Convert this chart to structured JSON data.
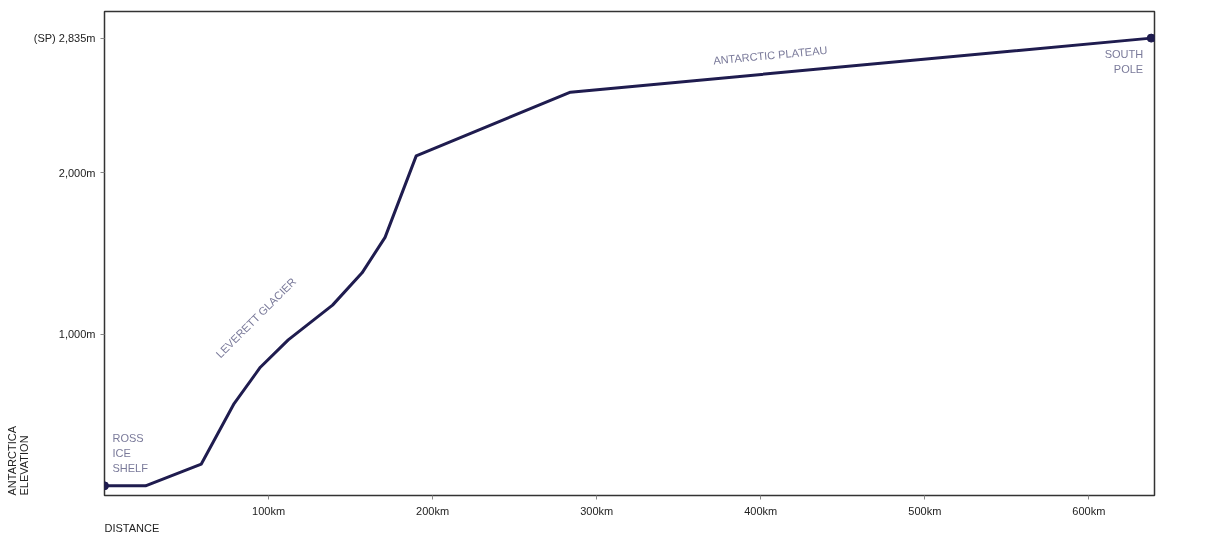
{
  "chart_data": {
    "type": "line",
    "xlabel": "DISTANCE",
    "ylabel": "ANTARCTICA\nELEVATION",
    "x": [
      0,
      25,
      59,
      79,
      95,
      112,
      139,
      157,
      171,
      190,
      284,
      638
    ],
    "series": [
      {
        "color": "#1f1c4f",
        "values": [
          60,
          60,
          195,
          570,
          795,
          965,
          1180,
          1380,
          1600,
          2105,
          2500,
          2835
        ]
      }
    ],
    "xlim": [
      0,
      640
    ],
    "ylim": [
      0,
      3000
    ],
    "xticks": [
      {
        "value": 100,
        "label": "100km"
      },
      {
        "value": 200,
        "label": "200km"
      },
      {
        "value": 300,
        "label": "300km"
      },
      {
        "value": 400,
        "label": "400km"
      },
      {
        "value": 500,
        "label": "500km"
      },
      {
        "value": 600,
        "label": "600km"
      }
    ],
    "yticks": [
      {
        "value": 1000,
        "label": "1,000m"
      },
      {
        "value": 2000,
        "label": "2,000m"
      },
      {
        "value": 2835,
        "label": "(SP) 2,835m"
      }
    ],
    "annotations": [
      {
        "text": "ROSS\nICE\nSHELF",
        "x": 0,
        "y": 60
      },
      {
        "text": "LEVERETT GLACIER",
        "x": 112,
        "y": 965
      },
      "ANTARCTIC PLATEAU",
      {
        "text": "SOUTH\nPOLE",
        "x": 638,
        "y": 2835
      }
    ],
    "grid": false
  }
}
